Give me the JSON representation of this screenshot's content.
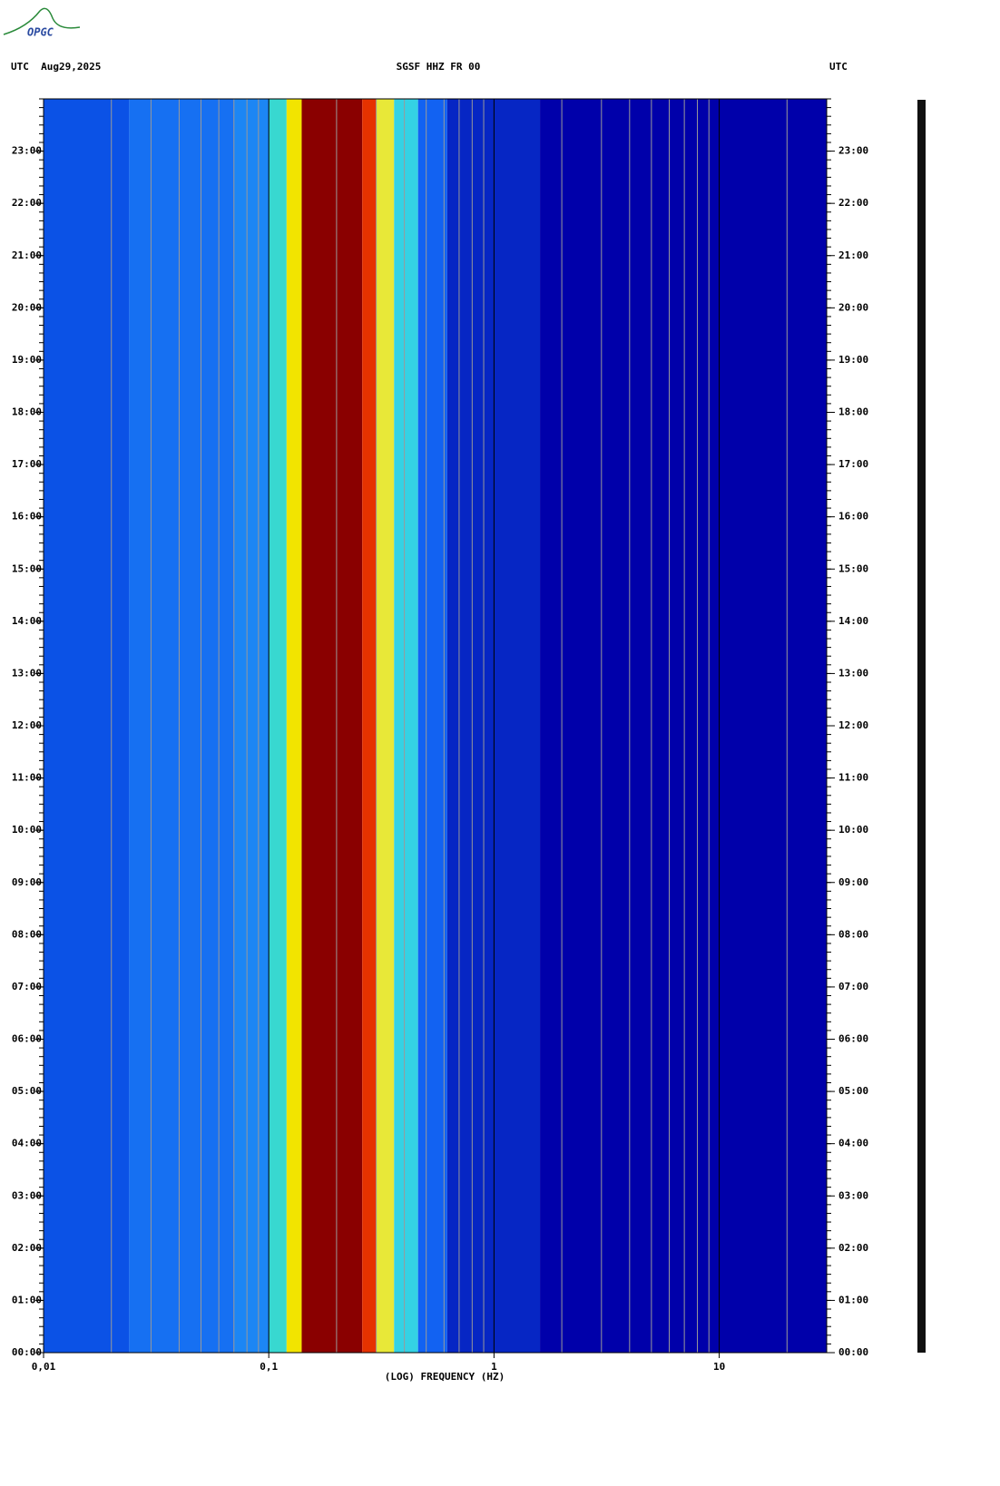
{
  "logo": "OPGC",
  "chart_data": {
    "type": "spectrogram",
    "title": "SGSF HHZ FR 00",
    "date_label": "UTC  Aug29,2025",
    "right_label": "UTC",
    "x_label": "(LOG) FREQUENCY (HZ)",
    "log_x": true,
    "xlim": [
      0.01,
      30
    ],
    "xticks": [
      {
        "value": 0.01,
        "label": "0,01"
      },
      {
        "value": 0.1,
        "label": "0,1"
      },
      1,
      10
    ],
    "ylim": [
      0,
      24
    ],
    "yticks": [
      {
        "value": 0,
        "label": "00:00"
      },
      {
        "value": 1,
        "label": "01:00"
      },
      {
        "value": 2,
        "label": "02:00"
      },
      {
        "value": 3,
        "label": "03:00"
      },
      {
        "value": 4,
        "label": "04:00"
      },
      {
        "value": 5,
        "label": "05:00"
      },
      {
        "value": 6,
        "label": "06:00"
      },
      {
        "value": 7,
        "label": "07:00"
      },
      {
        "value": 8,
        "label": "08:00"
      },
      {
        "value": 9,
        "label": "09:00"
      },
      {
        "value": 10,
        "label": "10:00"
      },
      {
        "value": 11,
        "label": "11:00"
      },
      {
        "value": 12,
        "label": "12:00"
      },
      {
        "value": 13,
        "label": "13:00"
      },
      {
        "value": 14,
        "label": "14:00"
      },
      {
        "value": 15,
        "label": "15:00"
      },
      {
        "value": 16,
        "label": "16:00"
      },
      {
        "value": 17,
        "label": "17:00"
      },
      {
        "value": 18,
        "label": "18:00"
      },
      {
        "value": 19,
        "label": "19:00"
      },
      {
        "value": 20,
        "label": "20:00"
      },
      {
        "value": 21,
        "label": "21:00"
      },
      {
        "value": 22,
        "label": "22:00"
      },
      {
        "value": 23,
        "label": "23:00"
      }
    ],
    "bands": [
      {
        "from": 0.01,
        "to": 0.024,
        "color": "#0b52e6"
      },
      {
        "from": 0.024,
        "to": 0.07,
        "color": "#1670f2"
      },
      {
        "from": 0.07,
        "to": 0.1,
        "color": "#1c86f4"
      },
      {
        "from": 0.1,
        "to": 0.12,
        "color": "#38d8d0"
      },
      {
        "from": 0.12,
        "to": 0.14,
        "color": "#f2e400"
      },
      {
        "from": 0.14,
        "to": 0.26,
        "color": "#8a0000"
      },
      {
        "from": 0.26,
        "to": 0.3,
        "color": "#e63200"
      },
      {
        "from": 0.3,
        "to": 0.36,
        "color": "#e8e838"
      },
      {
        "from": 0.36,
        "to": 0.46,
        "color": "#34d2e4"
      },
      {
        "from": 0.46,
        "to": 0.62,
        "color": "#1262f2"
      },
      {
        "from": 0.62,
        "to": 1.6,
        "color": "#0626c4"
      },
      {
        "from": 1.6,
        "to": 30,
        "color": "#0000aa"
      }
    ]
  }
}
